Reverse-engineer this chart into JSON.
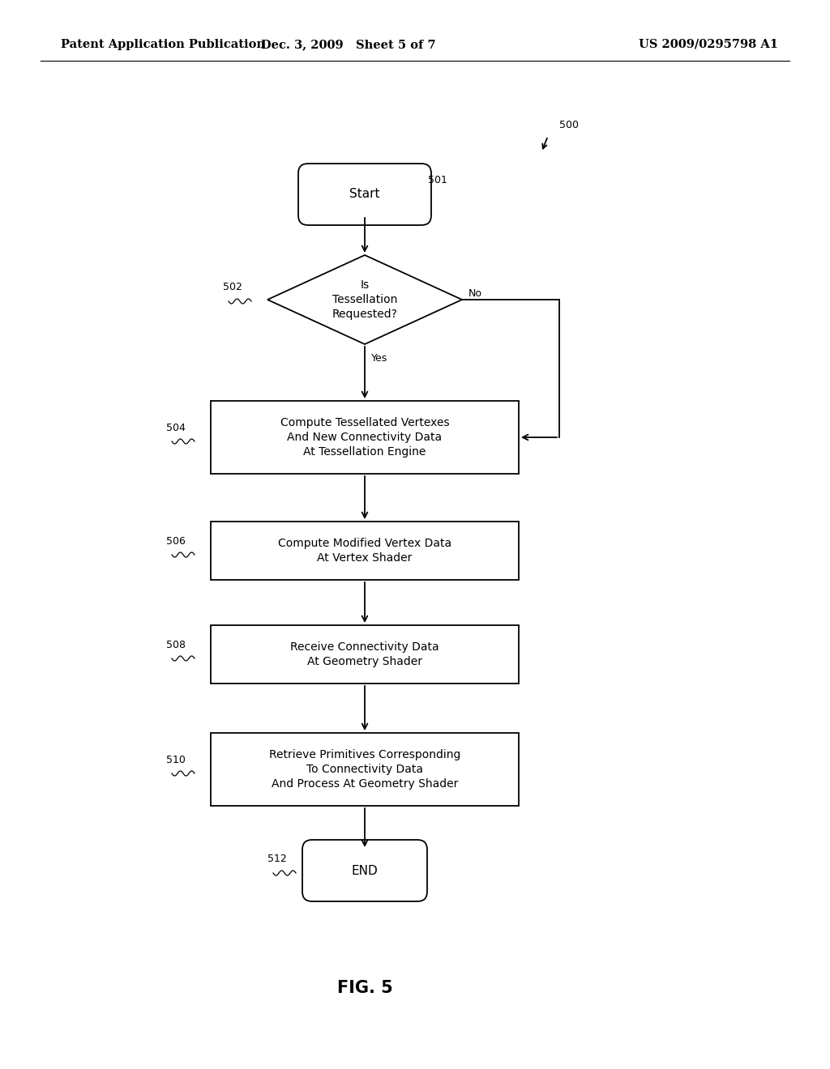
{
  "bg_color": "#ffffff",
  "header_left": "Patent Application Publication",
  "header_center": "Dec. 3, 2009   Sheet 5 of 7",
  "header_right": "US 2009/0295798 A1",
  "fig_label": "FIG. 5",
  "diagram_ref": "500",
  "font_size_header": 10.5,
  "font_size_node": 10,
  "font_size_ref": 9,
  "font_size_figlabel": 15
}
